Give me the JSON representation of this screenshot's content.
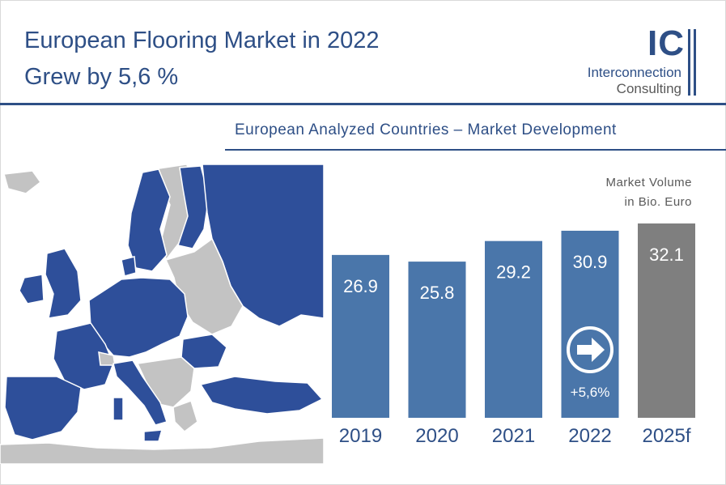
{
  "header": {
    "title_line1": "European Flooring Market in 2022",
    "title_line2": "Grew by 5,6 %"
  },
  "logo": {
    "mark": "IC",
    "line1": "Interconnection",
    "line2": "Consulting"
  },
  "section_title": "European Analyzed Countries – Market Development",
  "map_icon": "europe-map",
  "colors": {
    "brand_blue": "#2e4f86",
    "bar_blue": "#4a76aa",
    "forecast_gray": "#7f7f7f",
    "map_gray": "#c3c3c3"
  },
  "chart_data": {
    "type": "bar",
    "unit_label_line1": "Market Volume",
    "unit_label_line2": "in Bio. Euro",
    "categories": [
      "2019",
      "2020",
      "2021",
      "2022",
      "2025f"
    ],
    "values": [
      26.9,
      25.8,
      29.2,
      30.9,
      32.1
    ],
    "value_labels": [
      "26.9",
      "25.8",
      "29.2",
      "30.9",
      "32.1"
    ],
    "forecast_index": 4,
    "growth_annotation": {
      "index": 3,
      "label": "+5,6%",
      "icon": "right-arrow-circle-icon"
    }
  }
}
